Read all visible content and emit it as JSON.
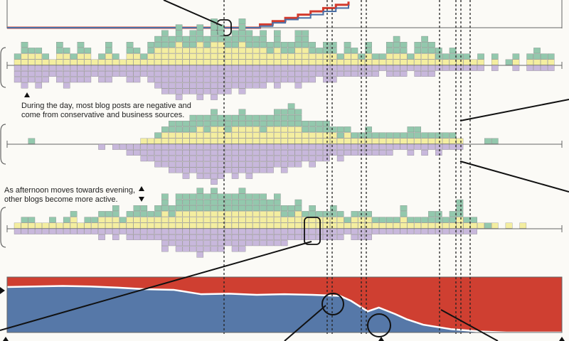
{
  "colors": {
    "background": "#fbfaf6",
    "positive": "#93c8ad",
    "neutral": "#f4eea0",
    "negative": "#c8b8dc",
    "cell_border": "#777777",
    "axis": "#666666",
    "red_line": "#d33a2c",
    "blue_line": "#4a6fa5",
    "stream_red": "#cf3f31",
    "stream_blue": "#5678a8",
    "annotation": "#111111"
  },
  "annotations": {
    "note1": "During the day, most blog posts are negative and come from conservative and business sources.",
    "note2": "As afternoon moves towards evening, other blogs become more active."
  },
  "icons": [
    "triangle-up-icon",
    "triangle-down-icon",
    "bracket-icon",
    "circle-highlight-icon"
  ],
  "chart_data": [
    {
      "type": "line",
      "description_visible": "cumulative step lines (top, partially cropped)",
      "series": [
        {
          "color": "red",
          "values": [
            0,
            0,
            0,
            0,
            0,
            0,
            0,
            0,
            0,
            0,
            0,
            0,
            0,
            0,
            0,
            0,
            0,
            0,
            0,
            0,
            1,
            2,
            3,
            4,
            5,
            6,
            7,
            8
          ]
        },
        {
          "color": "blue",
          "values": [
            0,
            0,
            0,
            0,
            0,
            0,
            0,
            0,
            0,
            0,
            0,
            0,
            0,
            0,
            0,
            0,
            0,
            0,
            0,
            0,
            0.5,
            1.5,
            2.5,
            3,
            4,
            5,
            6,
            7
          ]
        }
      ]
    },
    {
      "type": "bar",
      "description_visible": "stacked sentiment histogram, row 1",
      "stack_order": [
        "negative (below axis)",
        "neutral (above axis)",
        "positive (top)"
      ],
      "positive": [
        1,
        2,
        1,
        1,
        1,
        0,
        2,
        1,
        1,
        2,
        1,
        0,
        1,
        2,
        1,
        0,
        2,
        1,
        1,
        2,
        2,
        3,
        2,
        3,
        2,
        3,
        3,
        2,
        4,
        3,
        2,
        3,
        4,
        3,
        2,
        3,
        2,
        3,
        2,
        2,
        3,
        3,
        2,
        1,
        2,
        2,
        1,
        2,
        1,
        1,
        2,
        1,
        1,
        2,
        3,
        2,
        1,
        2,
        3,
        2,
        2,
        1,
        2,
        1,
        1,
        0,
        1,
        0,
        1,
        0,
        1,
        1,
        0,
        1,
        2,
        1,
        1
      ],
      "neutral": [
        1,
        2,
        2,
        2,
        1,
        1,
        2,
        2,
        1,
        2,
        2,
        1,
        1,
        2,
        1,
        1,
        2,
        2,
        1,
        2,
        3,
        3,
        3,
        4,
        3,
        3,
        4,
        3,
        4,
        4,
        3,
        3,
        4,
        3,
        3,
        3,
        2,
        3,
        2,
        2,
        3,
        3,
        2,
        2,
        2,
        2,
        1,
        2,
        2,
        1,
        2,
        1,
        1,
        2,
        2,
        2,
        1,
        2,
        2,
        2,
        1,
        1,
        1,
        1,
        1,
        1,
        1,
        0,
        1,
        0,
        0,
        1,
        0,
        1,
        1,
        1,
        1
      ],
      "negative": [
        3,
        4,
        3,
        4,
        3,
        2,
        3,
        4,
        3,
        3,
        3,
        2,
        3,
        3,
        2,
        2,
        3,
        3,
        2,
        3,
        4,
        5,
        5,
        6,
        5,
        5,
        6,
        5,
        6,
        5,
        5,
        4,
        5,
        4,
        4,
        4,
        3,
        4,
        3,
        3,
        4,
        3,
        3,
        2,
        3,
        3,
        2,
        2,
        2,
        2,
        2,
        2,
        1,
        2,
        2,
        2,
        1,
        2,
        2,
        2,
        1,
        1,
        1,
        1,
        1,
        1,
        1,
        0,
        1,
        0,
        0,
        1,
        0,
        1,
        1,
        1,
        1
      ]
    },
    {
      "type": "bar",
      "description_visible": "stacked sentiment histogram, row 2",
      "stack_order": [
        "negative (below axis)",
        "neutral (above axis)",
        "positive (top)"
      ],
      "positive": [
        0,
        0,
        1,
        0,
        0,
        0,
        0,
        0,
        0,
        0,
        0,
        0,
        0,
        0,
        0,
        0,
        0,
        0,
        0,
        0,
        1,
        1,
        2,
        2,
        2,
        3,
        2,
        3,
        3,
        2,
        3,
        2,
        3,
        2,
        2,
        3,
        2,
        3,
        3,
        4,
        3,
        2,
        2,
        2,
        2,
        1,
        2,
        1,
        1,
        1,
        2,
        1,
        1,
        1,
        1,
        1,
        2,
        2,
        1,
        1,
        1,
        1,
        1,
        0,
        0,
        0,
        0,
        1,
        1,
        0,
        0,
        0,
        0,
        0,
        0,
        0,
        0
      ],
      "neutral": [
        0,
        0,
        0,
        0,
        0,
        0,
        0,
        0,
        0,
        0,
        0,
        0,
        0,
        0,
        0,
        0,
        0,
        0,
        1,
        1,
        1,
        2,
        2,
        2,
        2,
        2,
        3,
        2,
        3,
        3,
        2,
        3,
        3,
        3,
        3,
        2,
        3,
        3,
        3,
        3,
        3,
        2,
        2,
        2,
        2,
        2,
        1,
        2,
        1,
        1,
        1,
        1,
        1,
        1,
        1,
        1,
        1,
        1,
        1,
        1,
        1,
        1,
        1,
        1,
        0,
        0,
        0,
        0,
        0,
        0,
        0,
        0,
        0,
        0,
        0,
        0,
        0
      ],
      "negative": [
        0,
        0,
        0,
        0,
        0,
        0,
        0,
        0,
        0,
        0,
        0,
        0,
        1,
        0,
        1,
        1,
        2,
        2,
        3,
        3,
        4,
        4,
        5,
        5,
        6,
        5,
        6,
        6,
        7,
        6,
        5,
        6,
        5,
        6,
        5,
        5,
        5,
        4,
        5,
        4,
        4,
        3,
        4,
        3,
        3,
        2,
        3,
        2,
        2,
        2,
        2,
        2,
        2,
        2,
        1,
        1,
        2,
        1,
        2,
        1,
        2,
        1,
        1,
        1,
        0,
        0,
        0,
        0,
        0,
        0,
        0,
        0,
        0,
        0,
        0,
        0,
        0
      ]
    },
    {
      "type": "bar",
      "description_visible": "stacked sentiment histogram, row 3",
      "stack_order": [
        "negative (below axis)",
        "neutral (above axis)",
        "positive (top)"
      ],
      "positive": [
        0,
        1,
        1,
        0,
        0,
        1,
        0,
        1,
        1,
        0,
        1,
        1,
        1,
        1,
        2,
        1,
        1,
        2,
        2,
        1,
        2,
        3,
        2,
        3,
        3,
        3,
        4,
        3,
        4,
        3,
        3,
        3,
        4,
        3,
        3,
        3,
        2,
        3,
        2,
        2,
        2,
        1,
        2,
        1,
        1,
        2,
        1,
        1,
        1,
        1,
        1,
        1,
        1,
        1,
        1,
        2,
        1,
        1,
        1,
        2,
        2,
        1,
        2,
        3,
        1,
        1,
        0,
        1,
        0,
        0,
        0,
        0,
        0,
        0,
        0,
        0,
        0
      ],
      "neutral": [
        1,
        1,
        1,
        1,
        1,
        1,
        1,
        1,
        2,
        1,
        1,
        1,
        2,
        2,
        2,
        1,
        2,
        2,
        2,
        2,
        2,
        3,
        2,
        3,
        3,
        3,
        3,
        3,
        3,
        3,
        3,
        3,
        3,
        3,
        3,
        3,
        3,
        3,
        2,
        2,
        3,
        2,
        2,
        2,
        2,
        2,
        2,
        1,
        2,
        2,
        2,
        1,
        1,
        1,
        1,
        2,
        1,
        1,
        1,
        1,
        1,
        1,
        1,
        2,
        1,
        1,
        1,
        0,
        1,
        0,
        1,
        0,
        1,
        0,
        0,
        0,
        0
      ],
      "negative": [
        1,
        1,
        1,
        1,
        1,
        1,
        1,
        1,
        1,
        1,
        1,
        1,
        2,
        1,
        2,
        1,
        2,
        2,
        2,
        2,
        2,
        4,
        3,
        4,
        4,
        4,
        5,
        4,
        4,
        4,
        3,
        4,
        4,
        3,
        3,
        3,
        3,
        3,
        3,
        2,
        2,
        2,
        2,
        2,
        2,
        2,
        2,
        1,
        2,
        2,
        2,
        1,
        1,
        1,
        1,
        1,
        1,
        1,
        1,
        1,
        1,
        1,
        1,
        1,
        1,
        1,
        0,
        0,
        0,
        0,
        0,
        0,
        0,
        0,
        0,
        0,
        0
      ]
    },
    {
      "type": "area",
      "description_visible": "red vs blue proportion stream (bottom)",
      "x": [
        0,
        0.05,
        0.1,
        0.15,
        0.2,
        0.25,
        0.3,
        0.35,
        0.4,
        0.45,
        0.5,
        0.55,
        0.6,
        0.62,
        0.65,
        0.67,
        0.7,
        0.72,
        0.75,
        0.8,
        0.85,
        0.9,
        0.95,
        1
      ],
      "blue_share": [
        0.82,
        0.83,
        0.84,
        0.83,
        0.81,
        0.78,
        0.77,
        0.69,
        0.7,
        0.68,
        0.69,
        0.68,
        0.66,
        0.57,
        0.38,
        0.45,
        0.33,
        0.24,
        0.14,
        0.06,
        0.02,
        0.0,
        0.0,
        0.0
      ]
    }
  ]
}
